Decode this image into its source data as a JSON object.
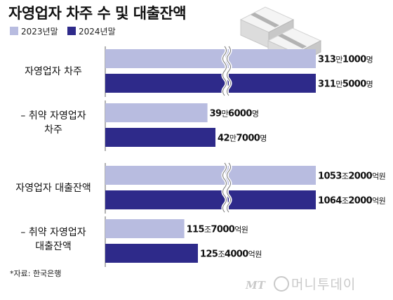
{
  "colors": {
    "y2023": "#b8bce0",
    "y2024": "#2e2a8a",
    "axis": "#666666"
  },
  "title": "자영업자 차주 수 및 대출잔액",
  "source": "*자료: 한국은행",
  "watermark": "머니투데이",
  "chart_data": {
    "type": "bar",
    "orientation": "horizontal",
    "title": "자영업자 차주 수 및 대출잔액",
    "legend": [
      "2023년말",
      "2024년말"
    ],
    "legend_position": "top-left",
    "axis_break": true,
    "groups": [
      {
        "category": [
          "자영업자 차주"
        ],
        "values": [
          3131000,
          3115000
        ],
        "labels": [
          {
            "num": "313",
            "unit1": "만",
            "num2": "1000",
            "unit2": "명"
          },
          {
            "num": "311",
            "unit1": "만",
            "num2": "5000",
            "unit2": "명"
          }
        ],
        "broken": true
      },
      {
        "category": [
          "– 취약 자영업자",
          "차주"
        ],
        "values": [
          396000,
          427000
        ],
        "labels": [
          {
            "num": "39",
            "unit1": "만",
            "num2": "6000",
            "unit2": "명"
          },
          {
            "num": "42",
            "unit1": "만",
            "num2": "7000",
            "unit2": "명"
          }
        ],
        "broken": false
      },
      {
        "category": [
          "자영업자 대출잔액"
        ],
        "values": [
          1053.2,
          1064.2
        ],
        "labels": [
          {
            "num": "1053",
            "unit1": "조",
            "num2": "2000",
            "unit2": "억원"
          },
          {
            "num": "1064",
            "unit1": "조",
            "num2": "2000",
            "unit2": "억원"
          }
        ],
        "broken": true
      },
      {
        "category": [
          "– 취약 자영업자",
          "대출잔액"
        ],
        "values": [
          115.7,
          125.4
        ],
        "labels": [
          {
            "num": "115",
            "unit1": "조",
            "num2": "7000",
            "unit2": "억원"
          },
          {
            "num": "125",
            "unit1": "조",
            "num2": "4000",
            "unit2": "억원"
          }
        ],
        "broken": false
      }
    ]
  }
}
